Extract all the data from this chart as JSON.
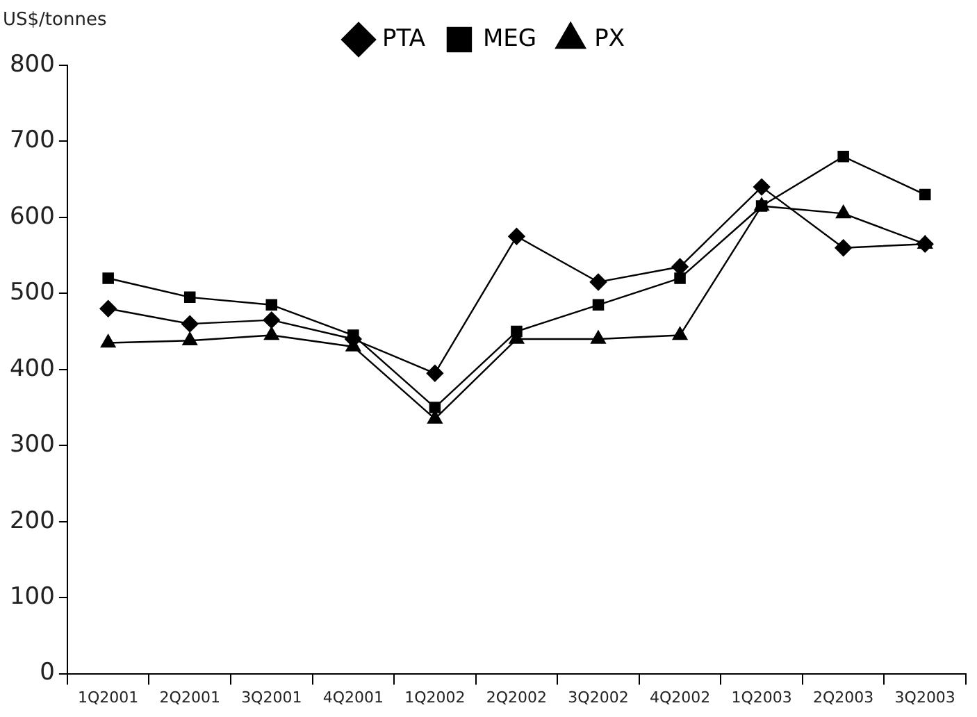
{
  "chart_data": {
    "type": "line",
    "ylabel": "US$/tonnes",
    "categories": [
      "1Q2001",
      "2Q2001",
      "3Q2001",
      "4Q2001",
      "1Q2002",
      "2Q2002",
      "3Q2002",
      "4Q2002",
      "1Q2003",
      "2Q2003",
      "3Q2003"
    ],
    "series": [
      {
        "name": "PTA",
        "color": "#000000",
        "marker": "diamond",
        "values": [
          480,
          460,
          465,
          440,
          395,
          575,
          515,
          535,
          640,
          560,
          565
        ]
      },
      {
        "name": "MEG",
        "color": "#000000",
        "marker": "square",
        "values": [
          520,
          495,
          485,
          445,
          350,
          450,
          485,
          520,
          615,
          680,
          630
        ]
      },
      {
        "name": "PX",
        "color": "#000000",
        "marker": "triangle",
        "values": [
          435,
          438,
          445,
          430,
          335,
          440,
          440,
          445,
          615,
          605,
          565
        ]
      }
    ],
    "ylim": [
      0,
      800
    ],
    "yticks": [
      0,
      100,
      200,
      300,
      400,
      500,
      600,
      700,
      800
    ],
    "grid": false,
    "legend": "top",
    "line_style": "solid"
  }
}
